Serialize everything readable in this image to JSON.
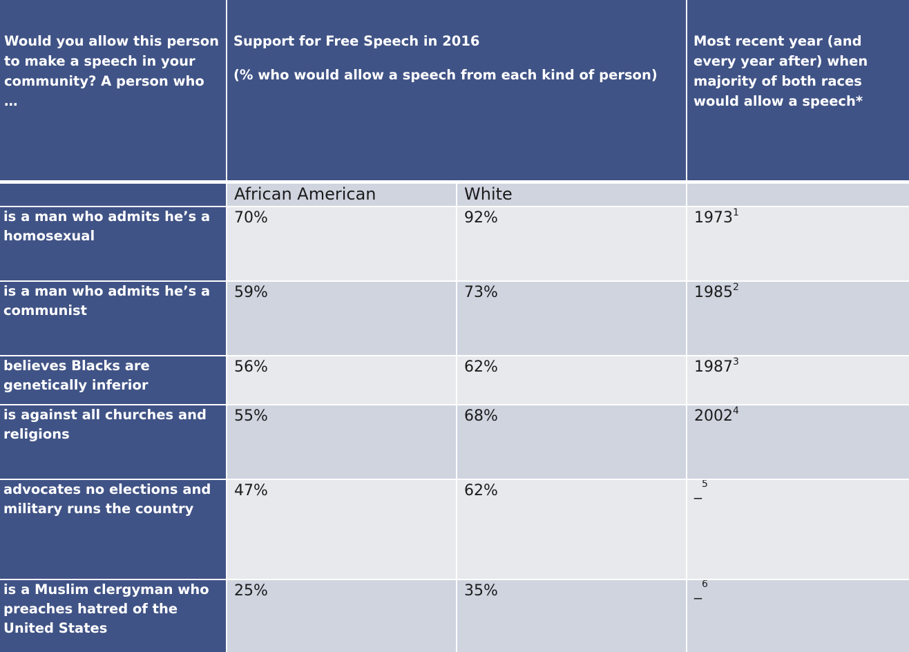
{
  "header": {
    "question": "Would you allow this person to make a speech in your community? A person who …",
    "support_title": "Support for Free Speech  in 2016",
    "support_note": "(% who would allow a speech from each kind of person)",
    "recent_year_title": "Most recent year (and every year after) when majority of both races would allow a speech*"
  },
  "subheader": {
    "col1": "African American",
    "col2": "White",
    "col3": ""
  },
  "rows": [
    {
      "label": "is a man who admits he’s a homosexual",
      "african_american": "70%",
      "white": "92%",
      "year": "1973",
      "note": "1"
    },
    {
      "label": "is a man who admits he’s a communist",
      "african_american": "59%",
      "white": "73%",
      "year": "1985",
      "note": "2"
    },
    {
      "label": "believes Blacks are genetically inferior",
      "african_american": "56%",
      "white": "62%",
      "year": "1987",
      "note": "3"
    },
    {
      "label": "is against all churches and religions",
      "african_american": "55%",
      "white": "68%",
      "year": "2002",
      "note": "4"
    },
    {
      "label": "advocates no elections and military runs the country",
      "african_american": "47%",
      "white": "62%",
      "year": "_",
      "note": "5"
    },
    {
      "label": "is a Muslim clergyman who preaches hatred of the United States",
      "african_american": "25%",
      "white": "35%",
      "year": "_",
      "note": "6"
    }
  ],
  "colors": {
    "header_bg": "#405386",
    "row_light": "#e8e9ec",
    "row_dark": "#cfd4df"
  }
}
